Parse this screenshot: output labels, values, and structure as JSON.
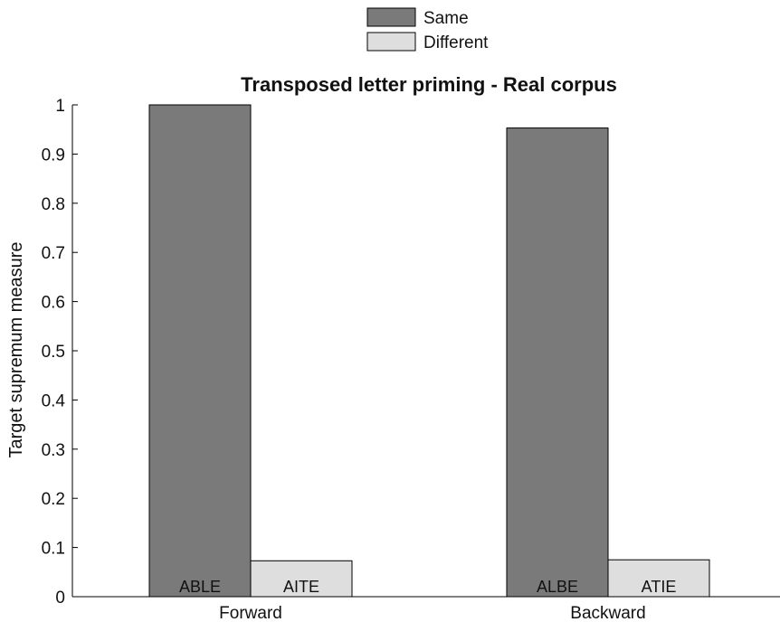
{
  "chart_data": {
    "type": "bar",
    "title": "Transposed letter priming - Real corpus",
    "xlabel": "",
    "ylabel": "Target supremum measure",
    "categories": [
      "Forward",
      "Backward"
    ],
    "ylim": [
      0,
      1
    ],
    "yticks": [
      "0",
      "0.1",
      "0.2",
      "0.3",
      "0.4",
      "0.5",
      "0.6",
      "0.7",
      "0.8",
      "0.9",
      "1"
    ],
    "grid": false,
    "legend_position": "top-center",
    "series": [
      {
        "name": "Same",
        "values": [
          1.0,
          0.953
        ],
        "color": "#7a7a7a",
        "bar_labels": [
          "ABLE",
          "ALBE"
        ]
      },
      {
        "name": "Different",
        "values": [
          0.073,
          0.075
        ],
        "color": "#dedede",
        "bar_labels": [
          "AITE",
          "ATIE"
        ]
      }
    ]
  }
}
